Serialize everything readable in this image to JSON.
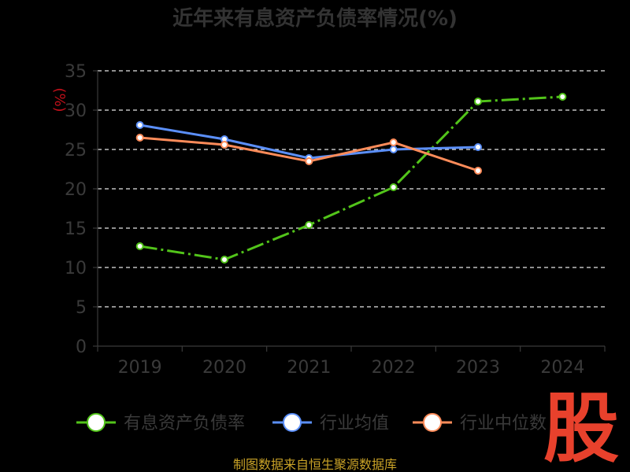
{
  "chart_data": {
    "type": "line",
    "title": "近年来有息资产负债率情况(%)",
    "y_unit_label": "(%)",
    "categories": [
      "2019",
      "2020",
      "2021",
      "2022",
      "2023",
      "2024"
    ],
    "ylim": [
      0,
      35
    ],
    "yticks": [
      0,
      5,
      10,
      15,
      20,
      25,
      30,
      35
    ],
    "grid": true,
    "legend_position": "bottom",
    "series": [
      {
        "name": "有息资产负债率",
        "color": "#52c41a",
        "dashed": true,
        "values": [
          12.7,
          11.0,
          15.4,
          20.2,
          31.1,
          31.7
        ]
      },
      {
        "name": "行业均值",
        "color": "#5b8ff9",
        "dashed": false,
        "values": [
          28.1,
          26.3,
          23.9,
          25.0,
          25.3,
          null
        ]
      },
      {
        "name": "行业中位数",
        "color": "#ff8c5a",
        "dashed": false,
        "values": [
          26.5,
          25.6,
          23.5,
          25.9,
          22.3,
          null
        ]
      }
    ]
  },
  "source_text": "制图数据来自恒生聚源数据库",
  "watermark_text": "股"
}
